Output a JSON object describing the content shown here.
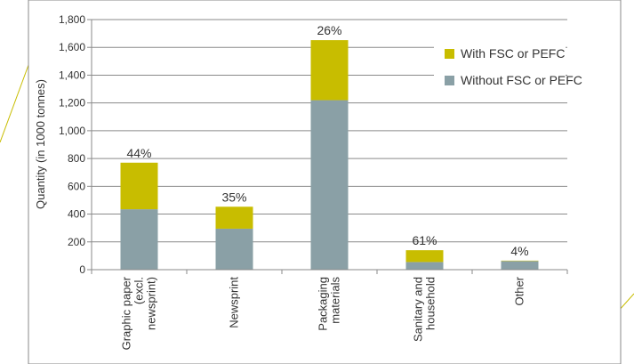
{
  "chart_data": {
    "type": "bar",
    "stacked": true,
    "title": "",
    "xlabel": "",
    "ylabel": "Quantity (in 1000 tonnes)",
    "ylim": [
      0,
      1800
    ],
    "yticks": [
      0,
      200,
      400,
      600,
      800,
      1000,
      1200,
      1400,
      1600,
      1800
    ],
    "ytick_labels": [
      "0",
      "200",
      "400",
      "600",
      "800",
      "1,000",
      "1,200",
      "1,400",
      "1,600",
      "1,800"
    ],
    "categories": [
      [
        "Graphic paper",
        "(excl.",
        "newsprint)"
      ],
      [
        "Newsprint"
      ],
      [
        "Packaging",
        "materials"
      ],
      [
        "Sanitary and",
        "household"
      ],
      [
        "Other"
      ]
    ],
    "series": [
      {
        "name": "Without FSC or PEFC",
        "color": "#8aa0a6",
        "values": [
          435,
          295,
          1220,
          55,
          62
        ]
      },
      {
        "name": "With FSC or PEFC",
        "color": "#c8bd00",
        "values": [
          335,
          158,
          432,
          85,
          3
        ]
      }
    ],
    "data_labels": [
      "44%",
      "35%",
      "26%",
      "61%",
      "4%"
    ],
    "grid": true,
    "legend": "top-right"
  }
}
